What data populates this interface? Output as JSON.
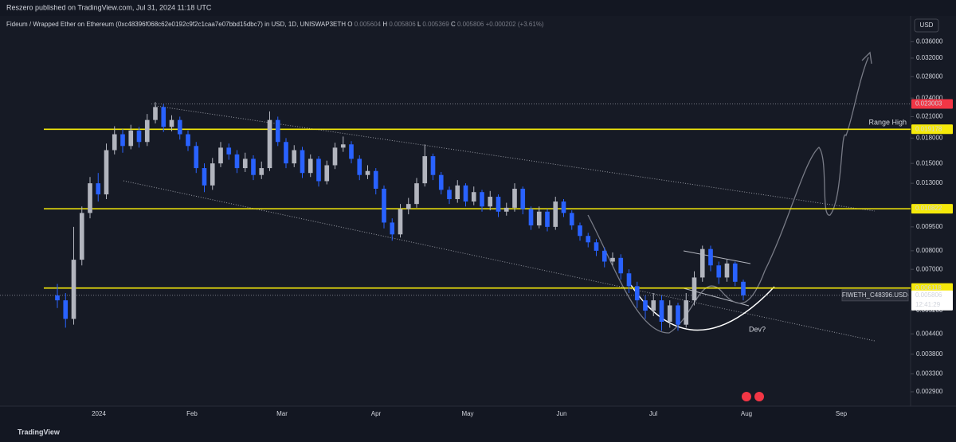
{
  "header": {
    "publisher": "Reszero published on TradingView.com, Jul 31, 2024 11:18 UTC",
    "brand": "TradingView"
  },
  "chart_data": {
    "type": "candlestick",
    "title": "Fideum / Wrapped Ether on Ethereum (0xc48396f068c62e0192c9f2c1caa7e07bbd15dbc7) in USD, 1D, UNISWAP3ETH",
    "ohlc_header": {
      "o_label": "O",
      "open": 0.005604,
      "h_label": "H",
      "high": 0.005806,
      "l_label": "L",
      "low": 0.005369,
      "c_label": "C",
      "close": 0.005806,
      "change": {
        "value": 0.000202,
        "label": "+0.000202"
      },
      "change_pct": {
        "value": 3.61,
        "label": "(+3.61%)"
      }
    },
    "currency": "USD",
    "symbol": "FIWETH_C48396.USD",
    "countdown": "12:41:29",
    "annotations": [
      "Range High",
      "Dev?"
    ],
    "x_labels": [
      "2024",
      "Feb",
      "Mar",
      "Apr",
      "May",
      "Jun",
      "Jul",
      "Aug",
      "Sep"
    ],
    "log_scale": true,
    "up_color": "#b2b5be",
    "down_color": "#2962ff",
    "ylim": [
      0.0026,
      0.04
    ],
    "yticks": [
      {
        "value": 0.036,
        "label": "0.036000"
      },
      {
        "value": 0.032,
        "label": "0.032000"
      },
      {
        "value": 0.028,
        "label": "0.028000"
      },
      {
        "value": 0.024,
        "label": "0.024000"
      },
      {
        "value": 0.021,
        "label": "0.021000"
      },
      {
        "value": 0.018,
        "label": "0.018000"
      },
      {
        "value": 0.015,
        "label": "0.015000"
      },
      {
        "value": 0.013,
        "label": "0.013000"
      },
      {
        "value": 0.0095,
        "label": "0.009500"
      },
      {
        "value": 0.008,
        "label": "0.008000"
      },
      {
        "value": 0.007,
        "label": "0.007000"
      },
      {
        "value": 0.0052,
        "label": "0.005200"
      },
      {
        "value": 0.0044,
        "label": "0.004400"
      },
      {
        "value": 0.0038,
        "label": "0.003800"
      },
      {
        "value": 0.0033,
        "label": "0.003300"
      },
      {
        "value": 0.0029,
        "label": "0.002900"
      }
    ],
    "price_labels": [
      {
        "value": 0.023003,
        "color": "#f23645",
        "line": "dotted"
      },
      {
        "value": 0.019178,
        "color": "#f5e90a",
        "line": "solid"
      },
      {
        "value": 0.010822,
        "color": "#f5e90a",
        "line": "solid"
      },
      {
        "value": 0.006118,
        "color": "#f5e90a",
        "line": "solid"
      },
      {
        "value": 0.005806,
        "color": "#ffffff",
        "line": "dotted"
      }
    ],
    "ohlc": [
      [
        0.0058,
        0.0063,
        0.0053,
        0.0056
      ],
      [
        0.0056,
        0.0059,
        0.0046,
        0.0049
      ],
      [
        0.0049,
        0.0095,
        0.0047,
        0.0075
      ],
      [
        0.0075,
        0.011,
        0.0072,
        0.0105
      ],
      [
        0.0105,
        0.0136,
        0.0101,
        0.013
      ],
      [
        0.013,
        0.014,
        0.0114,
        0.012
      ],
      [
        0.012,
        0.0173,
        0.0116,
        0.0165
      ],
      [
        0.0165,
        0.0196,
        0.016,
        0.0185
      ],
      [
        0.0185,
        0.0192,
        0.0162,
        0.017
      ],
      [
        0.017,
        0.0198,
        0.0166,
        0.019
      ],
      [
        0.019,
        0.0195,
        0.0168,
        0.0175
      ],
      [
        0.0175,
        0.0214,
        0.017,
        0.0205
      ],
      [
        0.0205,
        0.0233,
        0.02,
        0.0225
      ],
      [
        0.0225,
        0.023,
        0.0188,
        0.0195
      ],
      [
        0.0195,
        0.0212,
        0.0189,
        0.0205
      ],
      [
        0.0205,
        0.021,
        0.0178,
        0.0185
      ],
      [
        0.0185,
        0.019,
        0.0164,
        0.017
      ],
      [
        0.017,
        0.0175,
        0.014,
        0.0145
      ],
      [
        0.0145,
        0.015,
        0.0122,
        0.0128
      ],
      [
        0.0128,
        0.0156,
        0.0124,
        0.015
      ],
      [
        0.015,
        0.0175,
        0.0146,
        0.0168
      ],
      [
        0.0168,
        0.0173,
        0.0154,
        0.016
      ],
      [
        0.016,
        0.0165,
        0.014,
        0.0145
      ],
      [
        0.0145,
        0.0162,
        0.0141,
        0.0155
      ],
      [
        0.0155,
        0.0159,
        0.0133,
        0.0138
      ],
      [
        0.0138,
        0.0152,
        0.0134,
        0.0145
      ],
      [
        0.0145,
        0.0218,
        0.0142,
        0.0205
      ],
      [
        0.0205,
        0.021,
        0.017,
        0.0175
      ],
      [
        0.0175,
        0.018,
        0.0145,
        0.015
      ],
      [
        0.015,
        0.0171,
        0.0146,
        0.0165
      ],
      [
        0.0165,
        0.0169,
        0.0135,
        0.014
      ],
      [
        0.014,
        0.016,
        0.0136,
        0.0155
      ],
      [
        0.0155,
        0.0158,
        0.0127,
        0.0132
      ],
      [
        0.0132,
        0.0153,
        0.0129,
        0.0148
      ],
      [
        0.0148,
        0.0174,
        0.0144,
        0.0168
      ],
      [
        0.0168,
        0.0182,
        0.0163,
        0.0172
      ],
      [
        0.0172,
        0.0176,
        0.015,
        0.0155
      ],
      [
        0.0155,
        0.0159,
        0.0133,
        0.0138
      ],
      [
        0.0138,
        0.0148,
        0.0134,
        0.0142
      ],
      [
        0.0142,
        0.0145,
        0.012,
        0.0125
      ],
      [
        0.0125,
        0.0128,
        0.0094,
        0.0098
      ],
      [
        0.0098,
        0.0101,
        0.0086,
        0.009
      ],
      [
        0.009,
        0.0112,
        0.0088,
        0.0108
      ],
      [
        0.0108,
        0.0117,
        0.0104,
        0.0112
      ],
      [
        0.0112,
        0.0135,
        0.0109,
        0.013
      ],
      [
        0.013,
        0.0172,
        0.0127,
        0.0158
      ],
      [
        0.0158,
        0.0161,
        0.0133,
        0.0138
      ],
      [
        0.0138,
        0.0141,
        0.012,
        0.0124
      ],
      [
        0.0124,
        0.0127,
        0.0112,
        0.0116
      ],
      [
        0.0116,
        0.0133,
        0.0113,
        0.0128
      ],
      [
        0.0128,
        0.013,
        0.011,
        0.0114
      ],
      [
        0.0114,
        0.0127,
        0.0111,
        0.0122
      ],
      [
        0.0122,
        0.0124,
        0.0106,
        0.011
      ],
      [
        0.011,
        0.0123,
        0.0107,
        0.0118
      ],
      [
        0.0118,
        0.012,
        0.0102,
        0.0106
      ],
      [
        0.0106,
        0.0113,
        0.0103,
        0.0109
      ],
      [
        0.0109,
        0.013,
        0.0106,
        0.0125
      ],
      [
        0.0125,
        0.0127,
        0.0104,
        0.0108
      ],
      [
        0.0108,
        0.011,
        0.0093,
        0.0096
      ],
      [
        0.0096,
        0.011,
        0.0094,
        0.0106
      ],
      [
        0.0106,
        0.0108,
        0.0092,
        0.0095
      ],
      [
        0.0095,
        0.0118,
        0.0093,
        0.0114
      ],
      [
        0.0114,
        0.0116,
        0.0102,
        0.0105
      ],
      [
        0.0105,
        0.0107,
        0.0093,
        0.0096
      ],
      [
        0.0096,
        0.0098,
        0.0086,
        0.0089
      ],
      [
        0.0089,
        0.0091,
        0.0082,
        0.0085
      ],
      [
        0.0085,
        0.0087,
        0.0077,
        0.008
      ],
      [
        0.008,
        0.0082,
        0.0071,
        0.0074
      ],
      [
        0.0074,
        0.0079,
        0.0072,
        0.0076
      ],
      [
        0.0076,
        0.0078,
        0.0065,
        0.0068
      ],
      [
        0.0068,
        0.007,
        0.0059,
        0.0062
      ],
      [
        0.0062,
        0.0064,
        0.0053,
        0.0056
      ],
      [
        0.0056,
        0.0058,
        0.0049,
        0.0052
      ],
      [
        0.0052,
        0.0059,
        0.005,
        0.0056
      ],
      [
        0.0056,
        0.0058,
        0.0045,
        0.0048
      ],
      [
        0.0048,
        0.0056,
        0.0046,
        0.0054
      ],
      [
        0.0054,
        0.0055,
        0.0045,
        0.0047
      ],
      [
        0.0047,
        0.0059,
        0.0046,
        0.0056
      ],
      [
        0.0056,
        0.0069,
        0.0054,
        0.0066
      ],
      [
        0.0066,
        0.0083,
        0.0064,
        0.0081
      ],
      [
        0.0081,
        0.0083,
        0.0069,
        0.0072
      ],
      [
        0.0072,
        0.0074,
        0.0063,
        0.0066
      ],
      [
        0.0066,
        0.0075,
        0.0064,
        0.0073
      ],
      [
        0.0073,
        0.0074,
        0.0062,
        0.0064
      ],
      [
        0.0064,
        0.0065,
        0.0056,
        0.005806
      ]
    ]
  }
}
